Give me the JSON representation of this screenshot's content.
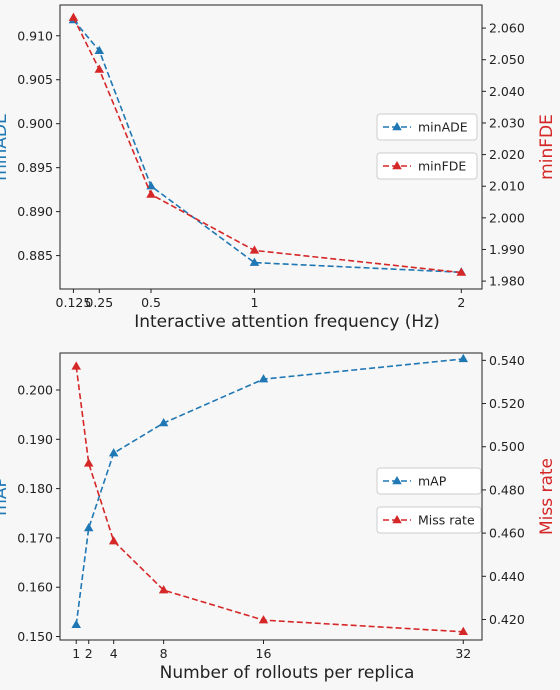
{
  "chart_data": [
    {
      "type": "line",
      "xlabel": "Interactive attention frequency (Hz)",
      "ylabel_left": "minADE",
      "ylabel_right": "minFDE",
      "xlim": [
        0.06,
        2.1
      ],
      "ylim_left": [
        0.8812,
        0.9135
      ],
      "ylim_right": [
        1.9775,
        2.0673
      ],
      "xticks": [
        0.125,
        0.25,
        0.5,
        1,
        2
      ],
      "xtick_labels": [
        "0.125",
        "0.25",
        "0.5",
        "1",
        "2"
      ],
      "yticks_left": [
        0.885,
        0.89,
        0.895,
        0.9,
        0.905,
        0.91
      ],
      "ytick_labels_left": [
        "0.885",
        "0.890",
        "0.895",
        "0.900",
        "0.905",
        "0.910"
      ],
      "yticks_right": [
        1.98,
        1.99,
        2.0,
        2.01,
        2.02,
        2.03,
        2.04,
        2.05,
        2.06
      ],
      "ytick_labels_right": [
        "1.980",
        "1.990",
        "2.000",
        "2.010",
        "2.020",
        "2.030",
        "2.040",
        "2.050",
        "2.060"
      ],
      "legend_position": "center-right",
      "series": [
        {
          "name": "minADE",
          "axis": "left",
          "color": "#1f77b4",
          "x": [
            0.125,
            0.25,
            0.5,
            1,
            2
          ],
          "y": [
            0.9118,
            0.9083,
            0.8929,
            0.8842,
            0.8831
          ]
        },
        {
          "name": "minFDE",
          "axis": "right",
          "color": "#d62728",
          "x": [
            0.125,
            0.25,
            0.5,
            1,
            2
          ],
          "y": [
            2.0633,
            2.0469,
            2.0074,
            1.9897,
            1.9827
          ]
        }
      ]
    },
    {
      "type": "line",
      "xlabel": "Number of rollouts per replica",
      "ylabel_left": "mAP",
      "ylabel_right": "Miss rate",
      "xlim": [
        -0.3,
        33.5
      ],
      "ylim_left": [
        0.1493,
        0.2075
      ],
      "ylim_right": [
        0.4105,
        0.5434
      ],
      "xticks": [
        1,
        2,
        4,
        8,
        16,
        32
      ],
      "xtick_labels": [
        "1",
        "2",
        "4",
        "8",
        "16",
        "32"
      ],
      "yticks_left": [
        0.15,
        0.16,
        0.17,
        0.18,
        0.19,
        0.2
      ],
      "ytick_labels_left": [
        "0.150",
        "0.160",
        "0.170",
        "0.180",
        "0.190",
        "0.200"
      ],
      "yticks_right": [
        0.42,
        0.44,
        0.46,
        0.48,
        0.5,
        0.52,
        0.54
      ],
      "ytick_labels_right": [
        "0.420",
        "0.440",
        "0.460",
        "0.480",
        "0.500",
        "0.520",
        "0.540"
      ],
      "legend_position": "center-right",
      "series": [
        {
          "name": "mAP",
          "axis": "left",
          "color": "#1f77b4",
          "x": [
            1,
            2,
            4,
            8,
            16,
            32
          ],
          "y": [
            0.1524,
            0.172,
            0.1872,
            0.1933,
            0.2022,
            0.2063
          ]
        },
        {
          "name": "Miss rate",
          "axis": "right",
          "color": "#d62728",
          "x": [
            1,
            2,
            4,
            8,
            16,
            32
          ],
          "y": [
            0.5372,
            0.4923,
            0.4563,
            0.4336,
            0.4197,
            0.4143
          ]
        }
      ]
    }
  ]
}
